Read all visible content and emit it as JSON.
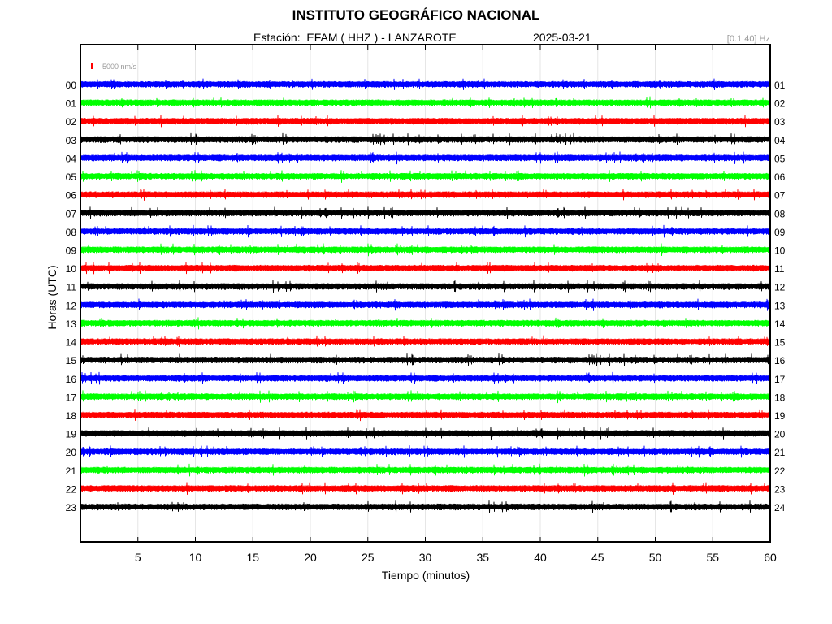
{
  "header": {
    "title": "INSTITUTO GEOGRÁFICO NACIONAL",
    "station_line": "Estación:  EFAM ( HHZ ) - LANZAROTE",
    "date": "2025-03-21",
    "band": "[0.1 40] Hz"
  },
  "chart_data": {
    "type": "line",
    "title": "INSTITUTO GEOGRÁFICO NACIONAL",
    "xlabel": "Tiempo (minutos)",
    "ylabel": "Horas (UTC)",
    "xlim": [
      0,
      60
    ],
    "x_ticks": [
      5,
      10,
      15,
      20,
      25,
      30,
      35,
      40,
      45,
      50,
      55,
      60
    ],
    "left_hour_labels": [
      "00",
      "01",
      "02",
      "03",
      "04",
      "05",
      "06",
      "07",
      "08",
      "09",
      "10",
      "11",
      "12",
      "13",
      "14",
      "15",
      "16",
      "17",
      "18",
      "19",
      "20",
      "21",
      "22",
      "23"
    ],
    "right_hour_labels": [
      "01",
      "02",
      "03",
      "04",
      "05",
      "06",
      "07",
      "08",
      "09",
      "10",
      "11",
      "12",
      "13",
      "14",
      "15",
      "16",
      "17",
      "18",
      "19",
      "20",
      "21",
      "22",
      "23",
      "24"
    ],
    "scale_label": "5000 nm/s",
    "trace_colors": [
      "#0000ff",
      "#00ff00",
      "#ff0000",
      "#000000"
    ],
    "scale_color": "#ff0000",
    "grid": true
  }
}
